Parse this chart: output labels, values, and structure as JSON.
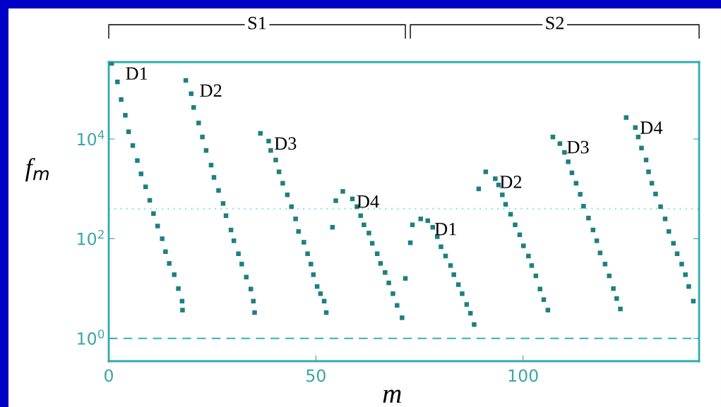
{
  "chart_data": {
    "type": "scatter",
    "xlabel": "m",
    "ylabel": "f$_{m}$",
    "log": "y",
    "marker": "square",
    "xlim": [
      0,
      142.5
    ],
    "xticks": [
      0,
      50,
      100
    ],
    "ylim": [
      0.35,
      350000
    ],
    "yticks": [
      {
        "value": 1,
        "label": "10$^{0}$"
      },
      {
        "value": 100,
        "label": "10$^{2}$"
      },
      {
        "value": 10000,
        "label": "10$^{4}$"
      }
    ],
    "annotations": [
      "S1",
      "S2"
    ],
    "ref_lines": [
      {
        "axis": "y",
        "value": 1,
        "color": "#33b3b3",
        "line_style": "dashed"
      },
      {
        "axis": "y",
        "value": 400,
        "color": "#8ee8ee",
        "line_style": "dotted"
      }
    ],
    "series": [
      {
        "name": "D1",
        "color": "#1f7f80",
        "x": [
          0.7,
          2.1,
          3.0,
          4.0,
          4.8,
          5.8,
          6.9,
          7.8,
          8.9,
          9.9,
          10.8,
          11.8,
          12.9,
          13.7,
          14.6,
          15.8,
          16.8,
          17.7,
          17.8
        ],
        "values": [
          330000,
          140000,
          62000,
          30000,
          14000,
          7400,
          3700,
          2000,
          1100,
          590,
          320,
          180,
          100,
          55,
          32,
          19,
          10,
          5.6,
          3.7
        ]
      },
      {
        "name": "D2",
        "color": "#1f7f80",
        "x": [
          18.6,
          19.9,
          20.5,
          21.7,
          22.6,
          23.5,
          24.7,
          25.4,
          26.5,
          27.6,
          28.3,
          29.5,
          30.2,
          31.3,
          32.1,
          33.2,
          34.3,
          34.9,
          35.2
        ],
        "values": [
          150000,
          81000,
          43000,
          21000,
          11000,
          5900,
          3000,
          1700,
          930,
          510,
          290,
          150,
          91,
          50,
          31,
          17,
          9.8,
          5.6,
          3.3
        ]
      },
      {
        "name": "D3",
        "color": "#1f7f80",
        "x": [
          36.6,
          38.6,
          39.1,
          40.3,
          41.1,
          42.0,
          43.1,
          44.1,
          45.1,
          45.8,
          47.1,
          48.0,
          48.8,
          49.4,
          50.3,
          51.1,
          52.0,
          52.5
        ],
        "values": [
          13000,
          9100,
          5900,
          3800,
          2200,
          1300,
          760,
          440,
          250,
          140,
          85,
          50,
          31,
          19,
          11,
          7.9,
          5.6,
          3.3
        ]
      },
      {
        "name": "D4",
        "color": "#1f7f80",
        "x": [
          54.0,
          54.8,
          56.5,
          58.8,
          59.9,
          60.8,
          61.6,
          62.8,
          63.6,
          64.8,
          65.6,
          66.7,
          67.6,
          68.6,
          69.6,
          70.8,
          71.6
        ],
        "values": [
          170,
          580,
          890,
          630,
          440,
          290,
          190,
          130,
          81,
          50,
          32,
          21,
          13,
          7.9,
          4.6,
          2.6,
          16
        ]
      },
      {
        "name": "D1",
        "color": "#1f7f80",
        "x": [
          72.8,
          73.3,
          75.3,
          77.0,
          78.2,
          79.3,
          80.2,
          81.3,
          82.5,
          83.3,
          84.4,
          85.3,
          86.4,
          87.3,
          88.2
        ],
        "values": [
          83,
          190,
          250,
          230,
          170,
          110,
          69,
          45,
          29,
          19,
          12,
          7.9,
          4.8,
          3.2,
          1.9
        ]
      },
      {
        "name": "D2",
        "color": "#1f7f80",
        "x": [
          89.3,
          91.0,
          93.3,
          94.1,
          95.0,
          95.8,
          97.0,
          98.1,
          99.2,
          100.1,
          101.3,
          102.1,
          103.1,
          104.1,
          105.0,
          106.0
        ],
        "values": [
          1000,
          2200,
          1600,
          1200,
          760,
          490,
          310,
          190,
          120,
          72,
          45,
          29,
          18,
          9.8,
          6.0,
          3.7
        ]
      },
      {
        "name": "D3",
        "color": "#1f7f80",
        "x": [
          107.2,
          108.9,
          110.0,
          110.9,
          111.8,
          112.8,
          113.8,
          114.6,
          115.8,
          116.9,
          117.8,
          118.6,
          119.8,
          120.8,
          121.8,
          122.6,
          123.5
        ],
        "values": [
          11000,
          8100,
          5400,
          3500,
          2100,
          1300,
          780,
          450,
          260,
          150,
          91,
          52,
          31,
          18,
          10,
          6.3,
          3.9
        ]
      },
      {
        "name": "D4",
        "color": "#1f7f80",
        "x": [
          124.9,
          127.1,
          127.8,
          128.6,
          129.7,
          130.3,
          131.1,
          132.0,
          133.2,
          134.3,
          135.2,
          136.3,
          137.2,
          138.3,
          139.2,
          140.0,
          141.1
        ],
        "values": [
          27000,
          17000,
          11000,
          6600,
          3800,
          2200,
          1300,
          790,
          440,
          250,
          140,
          81,
          50,
          31,
          19,
          11,
          5.6
        ]
      }
    ]
  }
}
